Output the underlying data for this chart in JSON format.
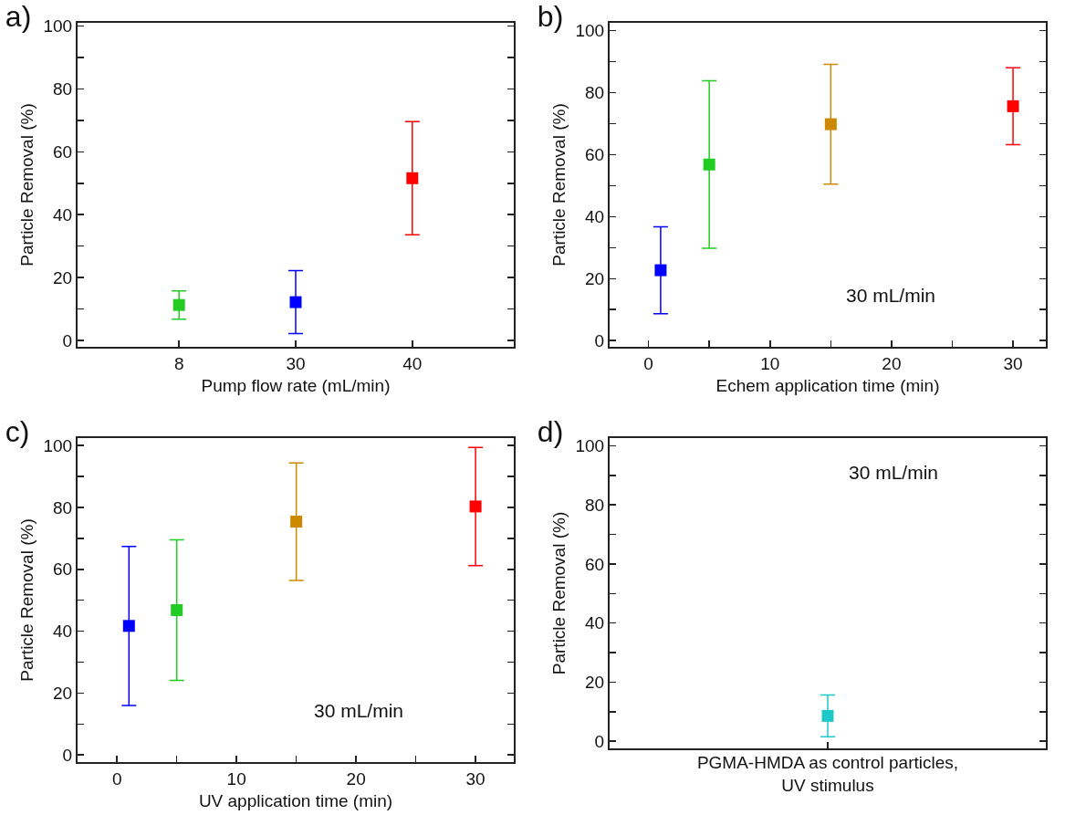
{
  "chart_data": [
    {
      "type": "scatter",
      "title": "a)",
      "xlabel": "Pump flow rate (mL/min)",
      "ylabel": "Particle Removal (%)",
      "categories": [
        "8",
        "30",
        "40"
      ],
      "values": [
        11.3,
        12.2,
        51.6
      ],
      "errors": [
        4.5,
        10,
        18
      ],
      "colors": [
        "#22cc22",
        "#0000ff",
        "#ff0000"
      ],
      "marker": "square",
      "ylim": [
        -2,
        101
      ],
      "yticks": [
        0,
        {
          "value": 10,
          "label": null
        },
        20,
        {
          "value": 30,
          "label": null
        },
        40,
        {
          "value": 50,
          "label": null
        },
        60,
        {
          "value": 70,
          "label": null
        },
        80,
        {
          "value": 90,
          "label": null
        },
        100
      ]
    },
    {
      "type": "scatter",
      "title": "b)",
      "xlabel": "Echem application time (min)",
      "ylabel": "Particle Removal (%)",
      "x": [
        1,
        5,
        15,
        30
      ],
      "values": [
        22.7,
        56.8,
        69.8,
        75.6
      ],
      "errors": [
        14,
        27,
        19.3,
        12.4
      ],
      "colors": [
        "#0000ff",
        "#22cc22",
        "#cc8800",
        "#ff0000"
      ],
      "marker": "square",
      "xlim": [
        -3.2,
        32.7
      ],
      "xticks": [
        0,
        {
          "value": 5,
          "label": null
        },
        10,
        {
          "value": 15,
          "label": null
        },
        20,
        {
          "value": 25,
          "label": null
        },
        30
      ],
      "ylim": [
        -2,
        102.5
      ],
      "yticks": [
        0,
        {
          "value": 10,
          "label": null
        },
        20,
        {
          "value": 30,
          "label": null
        },
        40,
        {
          "value": 50,
          "label": null
        },
        60,
        {
          "value": 70,
          "label": null
        },
        80,
        {
          "value": 90,
          "label": null
        },
        100
      ],
      "annotations": [
        "30 mL/min"
      ]
    },
    {
      "type": "scatter",
      "title": "c)",
      "xlabel": "UV application time (min)",
      "ylabel": "Particle Removal (%)",
      "x": [
        1,
        5,
        15,
        30
      ],
      "values": [
        41.7,
        46.8,
        75.4,
        80.3
      ],
      "errors": [
        25.7,
        22.7,
        19,
        19.1
      ],
      "colors": [
        "#0000ff",
        "#22cc22",
        "#cc8800",
        "#ff0000"
      ],
      "marker": "square",
      "xlim": [
        -3.3,
        33.2
      ],
      "xticks": [
        0,
        {
          "value": 5,
          "label": null
        },
        10,
        {
          "value": 15,
          "label": null
        },
        20,
        {
          "value": 25,
          "label": null
        },
        30
      ],
      "ylim": [
        -2.3,
        102.4
      ],
      "yticks": [
        0,
        {
          "value": 10,
          "label": null
        },
        20,
        {
          "value": 30,
          "label": null
        },
        40,
        {
          "value": 50,
          "label": null
        },
        60,
        {
          "value": 70,
          "label": null
        },
        80,
        {
          "value": 90,
          "label": null
        },
        100
      ],
      "annotations": [
        "30 mL/min"
      ]
    },
    {
      "type": "scatter",
      "title": "d)",
      "xlabel": "PGMA-HMDA as control particles,\nUV stimulus",
      "ylabel": "Particle Removal (%)",
      "categories": [
        null
      ],
      "values": [
        8.6
      ],
      "errors": [
        7.1
      ],
      "colors": [
        "#1ec8c8"
      ],
      "marker": "square",
      "ylim": [
        -2.4,
        102.6
      ],
      "yticks": [
        0,
        {
          "value": 10,
          "label": null
        },
        20,
        {
          "value": 30,
          "label": null
        },
        40,
        {
          "value": 50,
          "label": null
        },
        60,
        {
          "value": 70,
          "label": null
        },
        80,
        {
          "value": 90,
          "label": null
        },
        100
      ],
      "annotations": [
        "30 mL/min"
      ],
      "tick_labels": "y"
    }
  ]
}
